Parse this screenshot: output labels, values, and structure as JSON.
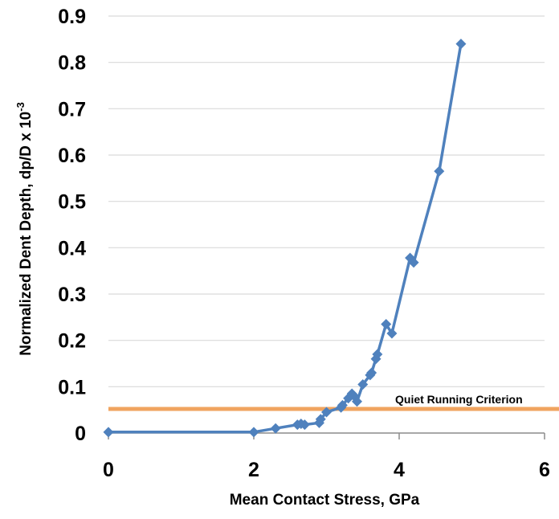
{
  "chart_data": {
    "type": "scatter",
    "title": "",
    "xlabel": "Mean Contact Stress, GPa",
    "ylabel_main": "Normalized Dent Depth, dp/D x 10",
    "ylabel_exponent": "-3",
    "xlim": [
      0,
      6
    ],
    "ylim": [
      0,
      0.9
    ],
    "x_ticks": [
      0,
      2,
      4,
      6
    ],
    "x_tick_labels": [
      "0",
      "2",
      "4",
      "6"
    ],
    "y_ticks": [
      0,
      0.1,
      0.2,
      0.3,
      0.4,
      0.5,
      0.6,
      0.7,
      0.8,
      0.9
    ],
    "y_tick_labels": [
      "0",
      "0.1",
      "0.2",
      "0.3",
      "0.4",
      "0.5",
      "0.6",
      "0.7",
      "0.8",
      "0.9"
    ],
    "grid": "horizontal",
    "series": [
      {
        "color": "#4f81bd",
        "marker": "diamond",
        "x": [
          0,
          2.0,
          2.3,
          2.6,
          2.65,
          2.7,
          2.9,
          2.92,
          3.0,
          3.2,
          3.22,
          3.3,
          3.35,
          3.38,
          3.42,
          3.5,
          3.6,
          3.62,
          3.68,
          3.7,
          3.82,
          3.9,
          4.15,
          4.2,
          4.55,
          4.85
        ],
        "y": [
          0.002,
          0.002,
          0.01,
          0.018,
          0.02,
          0.018,
          0.022,
          0.03,
          0.045,
          0.055,
          0.06,
          0.075,
          0.085,
          0.08,
          0.068,
          0.105,
          0.125,
          0.13,
          0.16,
          0.17,
          0.235,
          0.215,
          0.378,
          0.368,
          0.565,
          0.84
        ]
      }
    ],
    "reference_line": {
      "label": "Quiet Running Criterion",
      "y": 0.052,
      "color": "#f0a45f"
    }
  }
}
